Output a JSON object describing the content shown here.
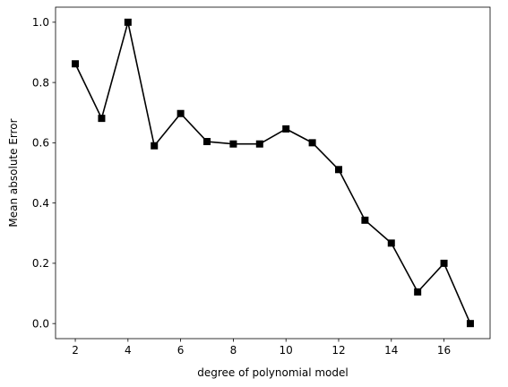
{
  "chart_data": {
    "type": "line",
    "title": "",
    "xlabel": "degree of polynomial model",
    "ylabel": "Mean absolute Error",
    "x": [
      2,
      3,
      4,
      5,
      6,
      7,
      8,
      9,
      10,
      11,
      12,
      13,
      14,
      15,
      16,
      17
    ],
    "series": [
      {
        "values": [
          0.862,
          0.681,
          1.0,
          0.59,
          0.697,
          0.604,
          0.596,
          0.596,
          0.646,
          0.6,
          0.511,
          0.343,
          0.267,
          0.105,
          0.2,
          0.0
        ],
        "color": "#000000",
        "marker": "square"
      }
    ],
    "xlim": [
      1.25,
      17.75
    ],
    "ylim": [
      -0.05,
      1.05
    ],
    "xticks": [
      2,
      4,
      6,
      8,
      10,
      12,
      14,
      16
    ],
    "xtick_labels": [
      "2",
      "4",
      "6",
      "8",
      "10",
      "12",
      "14",
      "16"
    ],
    "yticks": [
      0.0,
      0.2,
      0.4,
      0.6,
      0.8,
      1.0
    ],
    "ytick_labels": [
      "0.0",
      "0.2",
      "0.4",
      "0.6",
      "0.8",
      "1.0"
    ],
    "grid": false,
    "legend": "none"
  }
}
